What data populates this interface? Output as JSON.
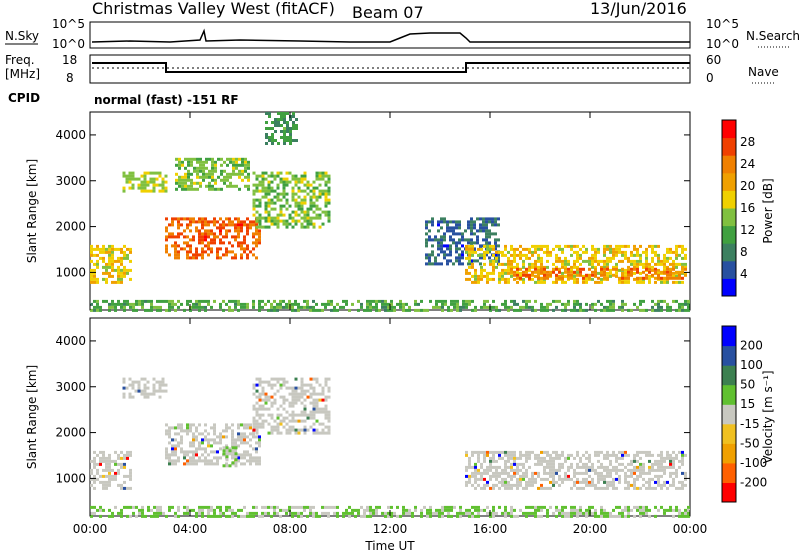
{
  "header": {
    "title": "Christmas Valley West (fitACF)",
    "beam": "Beam 07",
    "date": "13/Jun/2016"
  },
  "status_panels": {
    "nsky_label": "N.Sky",
    "nsearch_label": "N.Search",
    "noise_ticks": [
      "10^5",
      "10^0"
    ],
    "freq_label_line1": "Freq.",
    "freq_label_line2": "[MHz]",
    "freq_ticks": [
      "18",
      "8"
    ],
    "nave_label": "Nave",
    "nave_ticks": [
      "60",
      "0"
    ],
    "cpid_label": "CPID",
    "cpid_text": "normal (fast) -151 RF"
  },
  "chart_data": [
    {
      "type": "heatmap",
      "panel": "power",
      "ylabel": "Slant Range [km]",
      "xlabel": "",
      "xlim": [
        "00:00",
        "24:00"
      ],
      "ylim": [
        180,
        4500
      ],
      "yticks": [
        "4000",
        "3000",
        "2000",
        "1000"
      ],
      "colorbar": {
        "label": "Power [dB]",
        "ticks": [
          "28",
          "24",
          "20",
          "16",
          "12",
          "8",
          "4"
        ],
        "colors": [
          "#0000ff",
          "#2850a0",
          "#3c8060",
          "#40a040",
          "#80c040",
          "#f0d000",
          "#f0a000",
          "#f08000",
          "#f04000",
          "#ff0000"
        ]
      },
      "regions": [
        {
          "t": [
            0.0,
            1.6
          ],
          "r": [
            800,
            1600
          ],
          "level": 18
        },
        {
          "t": [
            1.3,
            3.0
          ],
          "r": [
            2750,
            3200
          ],
          "level": 16
        },
        {
          "t": [
            3.0,
            6.8
          ],
          "r": [
            1300,
            2200
          ],
          "level": 26
        },
        {
          "t": [
            3.4,
            6.4
          ],
          "r": [
            2800,
            3500
          ],
          "level": 14
        },
        {
          "t": [
            6.5,
            9.6
          ],
          "r": [
            2000,
            3200
          ],
          "level": 14
        },
        {
          "t": [
            7.0,
            8.3
          ],
          "r": [
            3800,
            4500
          ],
          "level": 10
        },
        {
          "t": [
            13.4,
            16.4
          ],
          "r": [
            1200,
            2200
          ],
          "level": 6
        },
        {
          "t": [
            15.0,
            23.8
          ],
          "r": [
            800,
            1600
          ],
          "level": 18
        },
        {
          "t": [
            16.8,
            23.8
          ],
          "r": [
            900,
            1100
          ],
          "level": 24
        },
        {
          "t": [
            0.0,
            24.0
          ],
          "r": [
            180,
            400
          ],
          "level": 12
        }
      ]
    },
    {
      "type": "heatmap",
      "panel": "velocity",
      "ylabel": "Slant Range [km]",
      "xlabel": "Time UT",
      "xlim": [
        "00:00",
        "24:00"
      ],
      "ylim": [
        180,
        4500
      ],
      "xticks": [
        "00:00",
        "04:00",
        "08:00",
        "12:00",
        "16:00",
        "20:00",
        "00:00"
      ],
      "yticks": [
        "4000",
        "3000",
        "2000",
        "1000"
      ],
      "colorbar": {
        "label": "Velocity [m s⁻¹]",
        "ticks": [
          "200",
          "100",
          "50",
          "15",
          "-15",
          "-50",
          "-100",
          "-200"
        ],
        "colors": [
          "#ff0000",
          "#ff6000",
          "#f0a000",
          "#f0c020",
          "#c8c8c0",
          "#60c030",
          "#3c8050",
          "#2850a0",
          "#0000ff"
        ]
      },
      "regions": [
        {
          "t": [
            0.0,
            1.6
          ],
          "r": [
            800,
            1600
          ],
          "vel": 0
        },
        {
          "t": [
            1.3,
            3.0
          ],
          "r": [
            2750,
            3200
          ],
          "vel": 0
        },
        {
          "t": [
            3.0,
            6.8
          ],
          "r": [
            1300,
            2200
          ],
          "vel": 0
        },
        {
          "t": [
            5.3,
            5.8
          ],
          "r": [
            1300,
            1700
          ],
          "vel": 40
        },
        {
          "t": [
            6.5,
            9.6
          ],
          "r": [
            2000,
            3200
          ],
          "vel": 0
        },
        {
          "t": [
            15.0,
            23.8
          ],
          "r": [
            800,
            1600
          ],
          "vel": 0
        },
        {
          "t": [
            0.0,
            24.0
          ],
          "r": [
            180,
            400
          ],
          "vel": 30
        }
      ]
    }
  ]
}
